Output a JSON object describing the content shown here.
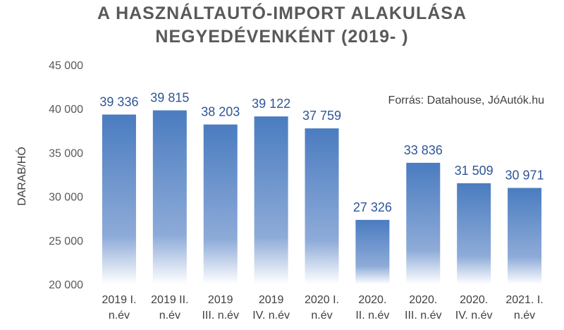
{
  "chart_data": {
    "type": "bar",
    "title_line1": "A HASZNÁLTAUTÓ-IMPORT ALAKULÁSA",
    "title_line2": "NEGYEDÉVENKÉNT (2019- )",
    "source": "Forrás: Datahouse, JóAutók.hu",
    "ylabel": "DARAB/HÓ",
    "ylim": [
      20000,
      45000
    ],
    "yticks": [
      "20 000",
      "25 000",
      "30 000",
      "35 000",
      "40 000",
      "45 000"
    ],
    "categories": [
      [
        "2019 I.",
        "n.év"
      ],
      [
        "2019 II.",
        "n.év"
      ],
      [
        "2019",
        "III. n.év"
      ],
      [
        "2019",
        "IV. n.év"
      ],
      [
        "2020 I.",
        "n.év"
      ],
      [
        "2020.",
        "II. n.év"
      ],
      [
        "2020.",
        "III. n.év"
      ],
      [
        "2020.",
        "IV. n.év"
      ],
      [
        "2021. I.",
        "n.év"
      ]
    ],
    "values": [
      39336,
      39815,
      38203,
      39122,
      37759,
      27326,
      33836,
      31509,
      30971
    ],
    "value_labels": [
      "39 336",
      "39 815",
      "38 203",
      "39 122",
      "37 759",
      "27 326",
      "33 836",
      "31 509",
      "30 971"
    ],
    "colors": {
      "bar_top": "#4a7cc0",
      "bar_bottom": "#ffffff",
      "label": "#2e5597"
    }
  }
}
